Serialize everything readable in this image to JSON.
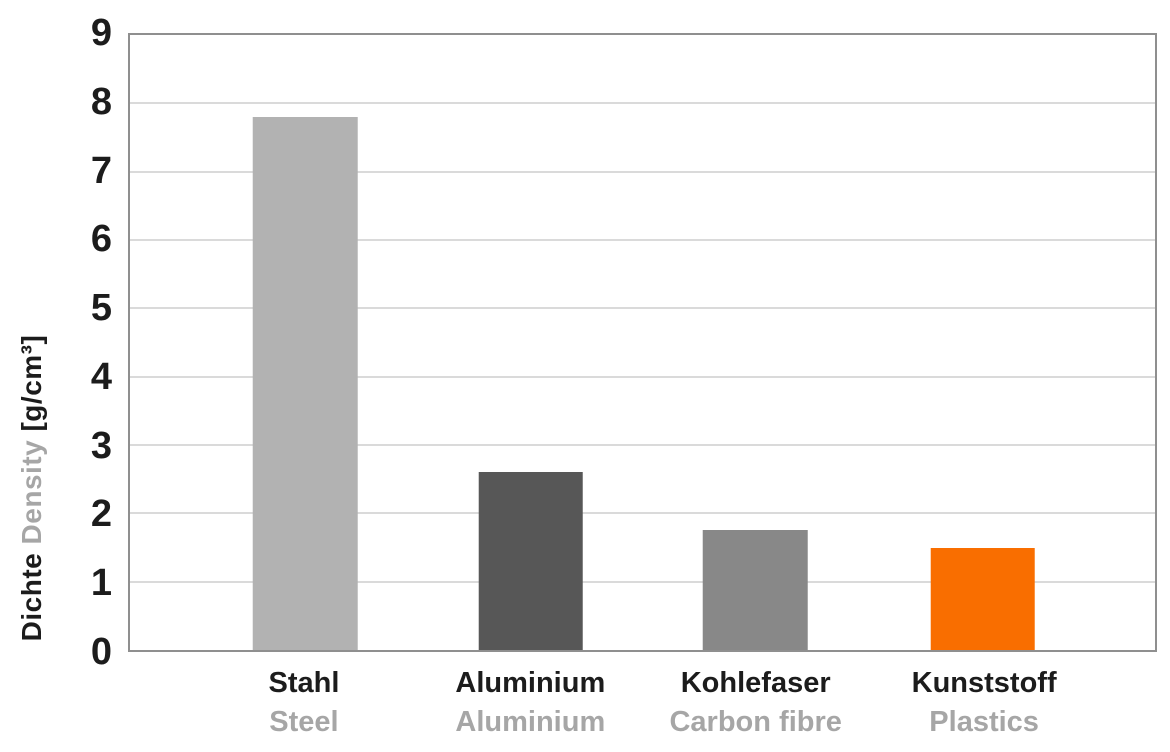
{
  "chart_data": {
    "type": "bar",
    "title": "",
    "categories": [
      "Stahl",
      "Aluminium",
      "Kohlefaser",
      "Kunststoff"
    ],
    "categories_en": [
      "Steel",
      "Aluminium",
      "Carbon fibre",
      "Plastics"
    ],
    "values": [
      7.8,
      2.6,
      1.75,
      1.5
    ],
    "bar_colors": [
      "#b2b2b2",
      "#575757",
      "#888888",
      "#f96e00"
    ],
    "xlabel": "",
    "ylabel_de": "Dichte",
    "ylabel_en": "Density",
    "ylabel_unit": "[g/cm³]",
    "ylabel_full": "Dichte Density [g/cm³]",
    "ylim": [
      0,
      9
    ],
    "ytick_step": 1,
    "yticks": [
      0,
      1,
      2,
      3,
      4,
      5,
      6,
      7,
      8,
      9
    ],
    "grid": true,
    "legend_position": "none"
  },
  "styles": {
    "text_dark": "#1c1c1c",
    "text_gray": "#a6a6a6",
    "grid_color": "#dadada",
    "frame_color": "#8f8f8f",
    "background": "#ffffff"
  }
}
